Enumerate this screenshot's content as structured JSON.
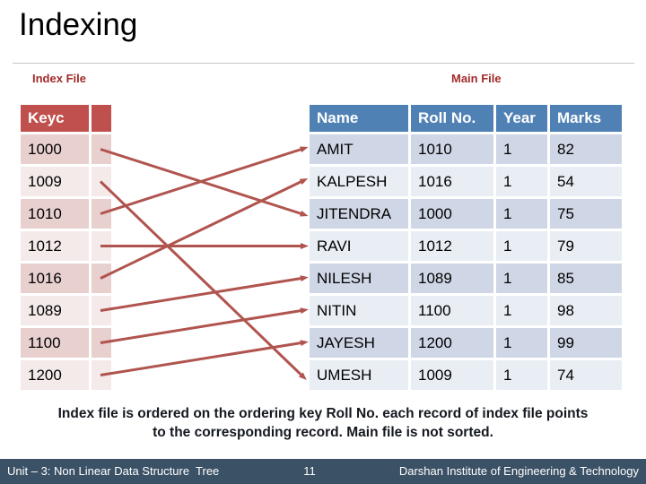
{
  "slide": {
    "title": "Indexing"
  },
  "index_file": {
    "label": "Index File",
    "header": "Keyc",
    "keys": [
      "1000",
      "1009",
      "1010",
      "1012",
      "1016",
      "1089",
      "1100",
      "1200"
    ]
  },
  "main_file": {
    "label": "Main File",
    "headers": [
      "Name",
      "Roll No.",
      "Year",
      "Marks"
    ],
    "rows": [
      [
        "AMIT",
        "1010",
        "1",
        "82"
      ],
      [
        "KALPESH",
        "1016",
        "1",
        "54"
      ],
      [
        "JITENDRA",
        "1000",
        "1",
        "75"
      ],
      [
        "RAVI",
        "1012",
        "1",
        "79"
      ],
      [
        "NILESH",
        "1089",
        "1",
        "85"
      ],
      [
        "NITIN",
        "1100",
        "1",
        "98"
      ],
      [
        "JAYESH",
        "1200",
        "1",
        "99"
      ],
      [
        "UMESH",
        "1009",
        "1",
        "74"
      ]
    ]
  },
  "caption": {
    "lines": [
      "Index file is ordered on the ordering key Roll No. each record of index file points",
      "to the corresponding record. Main file is not sorted."
    ]
  },
  "footer": {
    "left": "Unit – 3: Non Linear Data Structure  Tree",
    "page": "11",
    "right": "Darshan Institute of Engineering & Technology"
  },
  "colors": {
    "index_header": "#C0504D",
    "index_row_odd": "#E8D0CF",
    "index_row_even": "#F4EAE9",
    "main_header": "#5081B5",
    "main_row_odd": "#CFD7E6",
    "main_row_even": "#E9EDF4",
    "arrow": "#B0544F",
    "accent_label": "#A32A2A",
    "caption_text": "#14181F",
    "footer_bg": "#3B5166"
  }
}
